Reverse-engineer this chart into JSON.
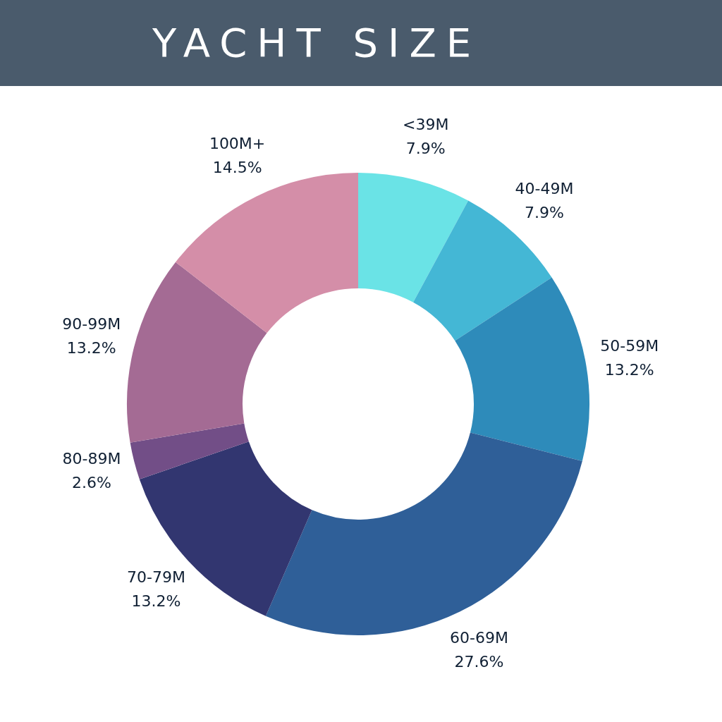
{
  "chart_data": {
    "type": "donut",
    "title": "YACHT SIZE",
    "categories": [
      "<39M",
      "40-49M",
      "50-59M",
      "60-69M",
      "70-79M",
      "80-89M",
      "90-99M",
      "100M+"
    ],
    "values": [
      7.9,
      7.9,
      13.2,
      27.6,
      13.2,
      2.6,
      13.2,
      14.5
    ],
    "colors": [
      "#6ae3e6",
      "#44b7d5",
      "#2e8bba",
      "#2f5f98",
      "#323670",
      "#724e87",
      "#a46b94",
      "#d48ea8"
    ],
    "value_labels": [
      "7.9%",
      "7.9%",
      "13.2%",
      "27.6%",
      "13.2%",
      "2.6%",
      "13.2%",
      "14.5%"
    ]
  }
}
